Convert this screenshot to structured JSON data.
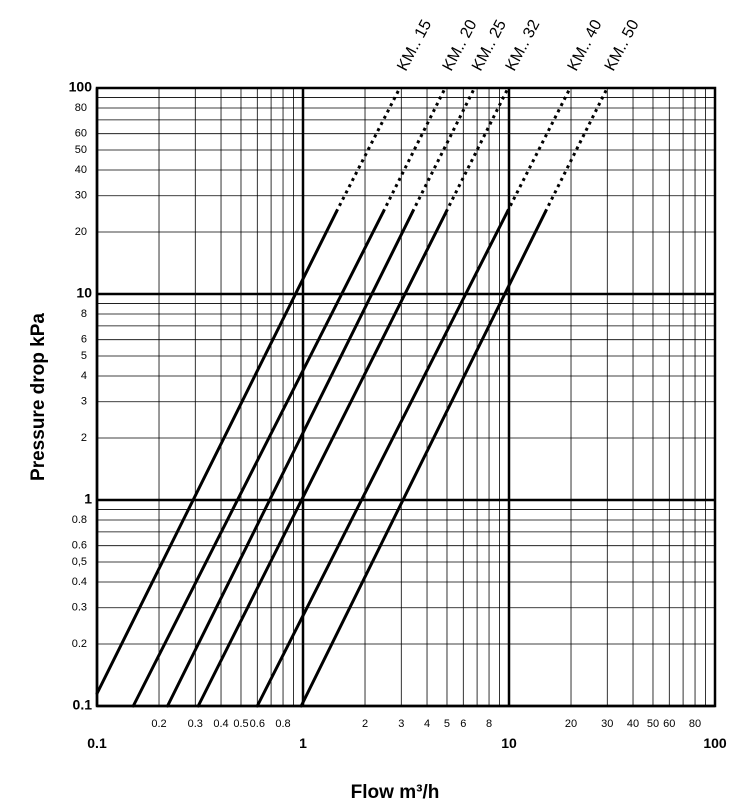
{
  "chart_data": {
    "type": "line",
    "title": "",
    "xlabel": "Flow m³/h",
    "ylabel": "Pressure drop kPa",
    "x_scale": "log",
    "y_scale": "log",
    "xlim": [
      0.1,
      100
    ],
    "ylim": [
      0.1,
      100
    ],
    "grid": true,
    "x_ticks": [
      {
        "value": 0.1,
        "label": "0.1",
        "major": true
      },
      {
        "value": 0.2,
        "label": "0.2",
        "major": false
      },
      {
        "value": 0.3,
        "label": "0.3",
        "major": false
      },
      {
        "value": 0.4,
        "label": "0.4",
        "major": false
      },
      {
        "value": 0.5,
        "label": "0.5",
        "major": false
      },
      {
        "value": 0.6,
        "label": "0.6",
        "major": false
      },
      {
        "value": 0.8,
        "label": "0.8",
        "major": false
      },
      {
        "value": 1,
        "label": "1",
        "major": true
      },
      {
        "value": 2,
        "label": "2",
        "major": false
      },
      {
        "value": 3,
        "label": "3",
        "major": false
      },
      {
        "value": 4,
        "label": "4",
        "major": false
      },
      {
        "value": 5,
        "label": "5",
        "major": false
      },
      {
        "value": 6,
        "label": "6",
        "major": false
      },
      {
        "value": 8,
        "label": "8",
        "major": false
      },
      {
        "value": 10,
        "label": "10",
        "major": true
      },
      {
        "value": 20,
        "label": "20",
        "major": false
      },
      {
        "value": 30,
        "label": "30",
        "major": false
      },
      {
        "value": 40,
        "label": "40",
        "major": false
      },
      {
        "value": 50,
        "label": "50",
        "major": false
      },
      {
        "value": 60,
        "label": "60",
        "major": false
      },
      {
        "value": 80,
        "label": "80",
        "major": false
      },
      {
        "value": 100,
        "label": "100",
        "major": true
      }
    ],
    "y_ticks": [
      {
        "value": 0.1,
        "label": "0.1",
        "major": true
      },
      {
        "value": 0.2,
        "label": "0.2",
        "major": false
      },
      {
        "value": 0.3,
        "label": "0.3",
        "major": false
      },
      {
        "value": 0.4,
        "label": "0.4",
        "major": false
      },
      {
        "value": 0.5,
        "label": "0,5",
        "major": false
      },
      {
        "value": 0.6,
        "label": "0.6",
        "major": false
      },
      {
        "value": 0.8,
        "label": "0.8",
        "major": false
      },
      {
        "value": 1,
        "label": "1",
        "major": true
      },
      {
        "value": 2,
        "label": "2",
        "major": false
      },
      {
        "value": 3,
        "label": "3",
        "major": false
      },
      {
        "value": 4,
        "label": "4",
        "major": false
      },
      {
        "value": 5,
        "label": "5",
        "major": false
      },
      {
        "value": 6,
        "label": "6",
        "major": false
      },
      {
        "value": 8,
        "label": "8",
        "major": false
      },
      {
        "value": 10,
        "label": "10",
        "major": true
      },
      {
        "value": 20,
        "label": "20",
        "major": false
      },
      {
        "value": 30,
        "label": "30",
        "major": false
      },
      {
        "value": 40,
        "label": "40",
        "major": false
      },
      {
        "value": 50,
        "label": "50",
        "major": false
      },
      {
        "value": 60,
        "label": "60",
        "major": false
      },
      {
        "value": 80,
        "label": "80",
        "major": false
      },
      {
        "value": 100,
        "label": "100",
        "major": true
      }
    ],
    "series": [
      {
        "name": "KM.. 15",
        "points": [
          [
            0.1,
            0.115
          ],
          [
            1.45,
            25
          ],
          [
            2.95,
            100
          ]
        ]
      },
      {
        "name": "KM.. 20",
        "points": [
          [
            0.15,
            0.1
          ],
          [
            2.45,
            25
          ],
          [
            4.9,
            100
          ]
        ]
      },
      {
        "name": "KM.. 25",
        "points": [
          [
            0.22,
            0.1
          ],
          [
            3.4,
            25
          ],
          [
            6.8,
            100
          ]
        ]
      },
      {
        "name": "KM.. 32",
        "points": [
          [
            0.31,
            0.1
          ],
          [
            4.95,
            25
          ],
          [
            9.9,
            100
          ]
        ]
      },
      {
        "name": "KM.. 40",
        "points": [
          [
            0.6,
            0.1
          ],
          [
            9.8,
            25
          ],
          [
            19.8,
            100
          ]
        ]
      },
      {
        "name": "KM.. 50",
        "points": [
          [
            0.98,
            0.1
          ],
          [
            15,
            25
          ],
          [
            30,
            100
          ]
        ]
      }
    ]
  }
}
